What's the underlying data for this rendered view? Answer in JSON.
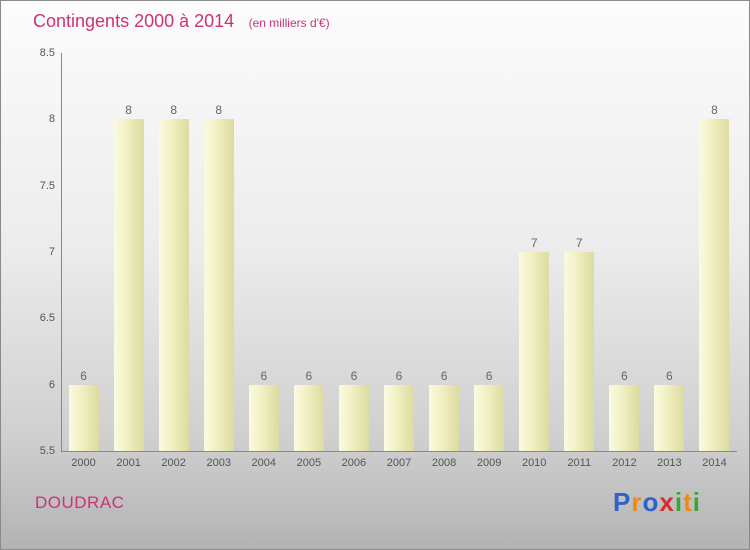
{
  "header": {
    "title": "Contingents 2000 à 2014",
    "subtitle": "(en milliers d'€)"
  },
  "footer": {
    "place": "DOUDRAC",
    "logo": {
      "letters": [
        {
          "ch": "P",
          "color": "#2f62c9"
        },
        {
          "ch": "r",
          "color": "#ef8a16"
        },
        {
          "ch": "o",
          "color": "#2f62c9"
        },
        {
          "ch": "x",
          "color": "#d92b2b"
        },
        {
          "ch": "i",
          "color": "#3ba52d"
        },
        {
          "ch": "t",
          "color": "#ef8a16"
        },
        {
          "ch": "i",
          "color": "#3ba52d"
        }
      ]
    }
  },
  "chart_data": {
    "type": "bar",
    "title": "Contingents 2000 à 2014",
    "subtitle": "(en milliers d'€)",
    "categories": [
      "2000",
      "2001",
      "2002",
      "2003",
      "2004",
      "2005",
      "2006",
      "2007",
      "2008",
      "2009",
      "2010",
      "2011",
      "2012",
      "2013",
      "2014"
    ],
    "values": [
      6,
      8,
      8,
      8,
      6,
      6,
      6,
      6,
      6,
      6,
      7,
      7,
      6,
      6,
      8
    ],
    "xlabel": "",
    "ylabel": "",
    "ylim": [
      5.5,
      8.5
    ],
    "yticks": [
      "5.5",
      "6",
      "6.5",
      "7",
      "7.5",
      "8",
      "8.5"
    ],
    "grid": false,
    "legend": "none",
    "bar_color": "#eeedb8",
    "accent_color": "#cc3377",
    "label_color": "#666666"
  }
}
